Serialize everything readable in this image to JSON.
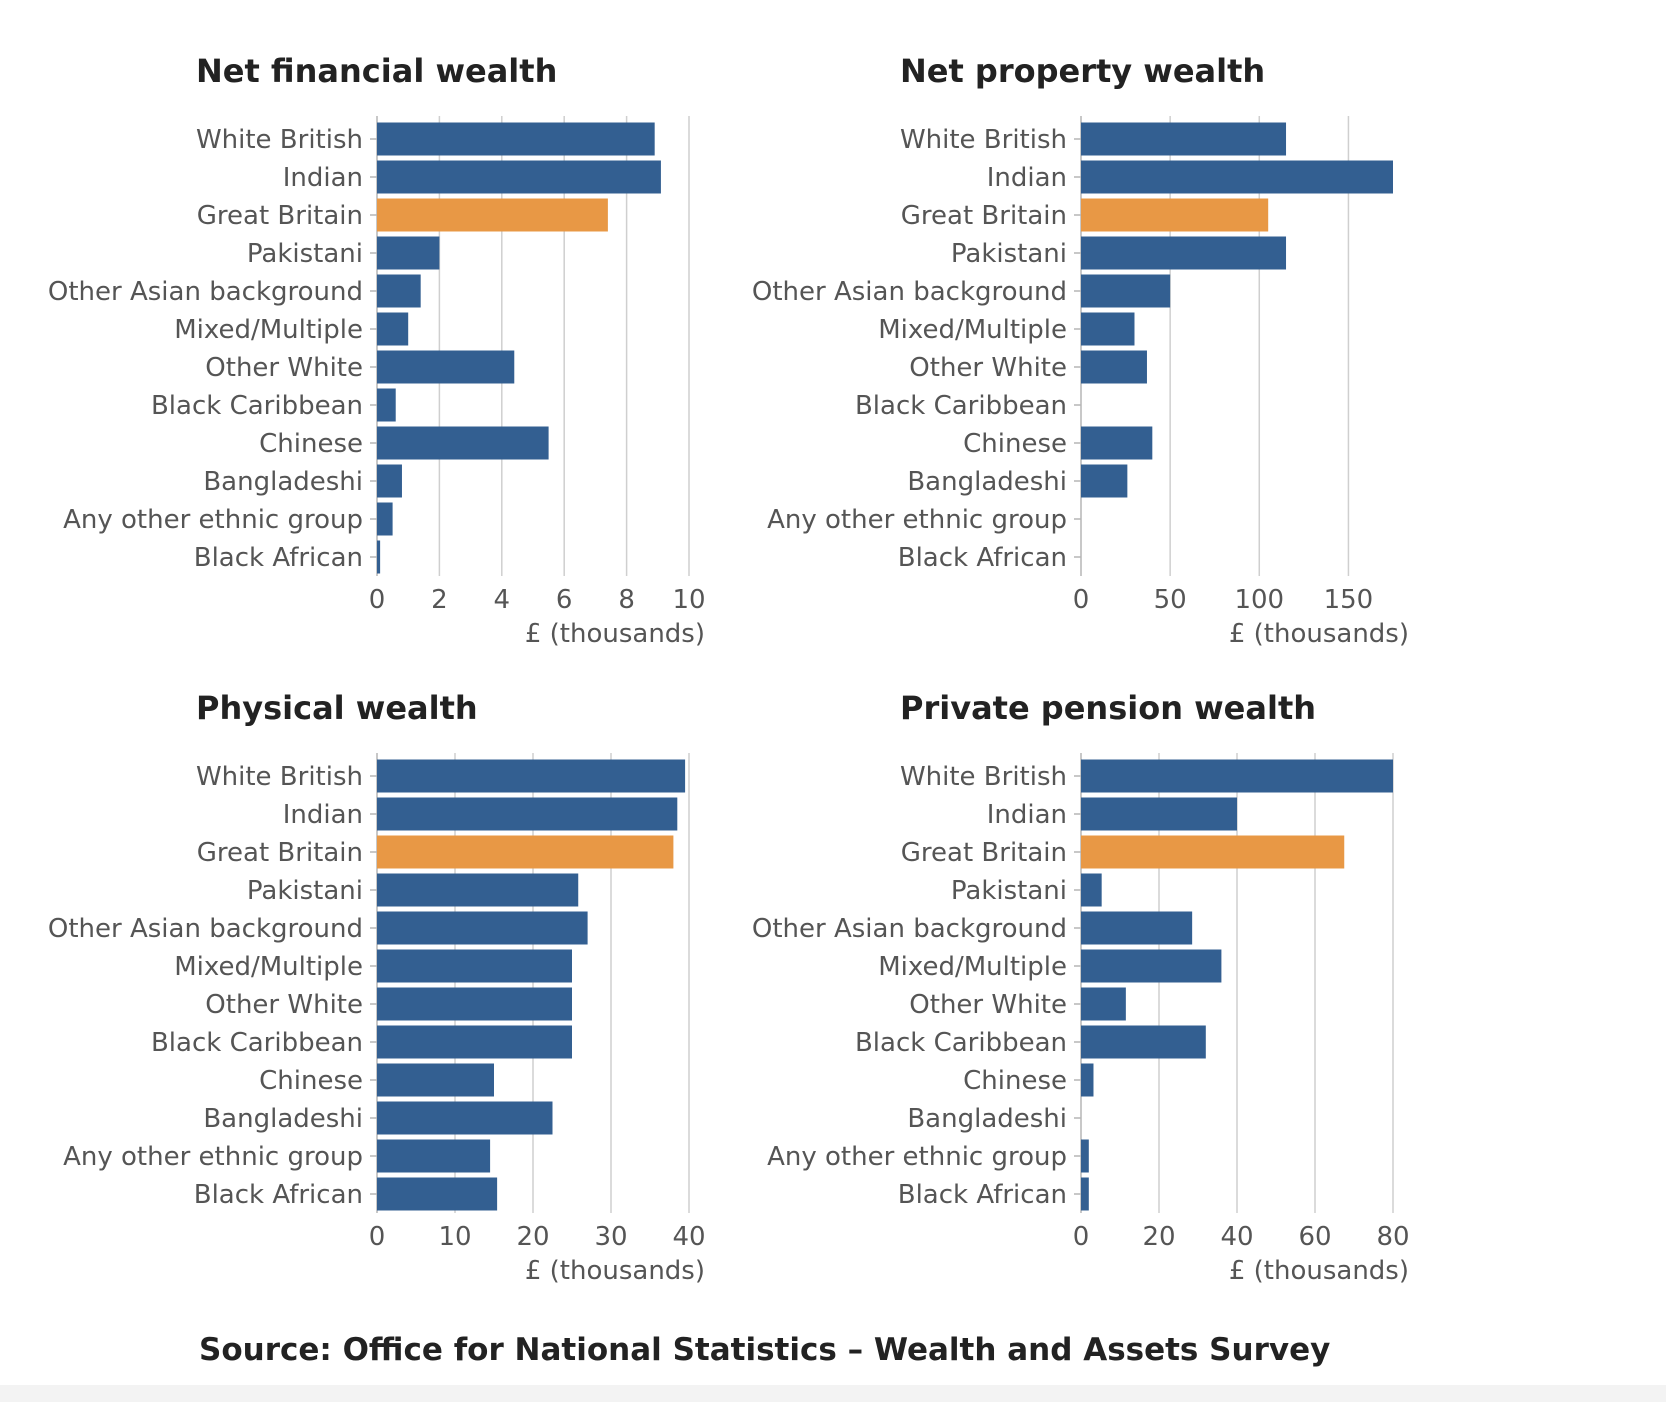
{
  "source": "Source: Office for National Statistics – Wealth and Assets Survey",
  "colors": {
    "bar": "#335f91",
    "highlight": "#e89845",
    "grid": "#cfcfcf",
    "axis_text": "#555555",
    "title": "#222222"
  },
  "chart_data": [
    {
      "type": "bar",
      "orientation": "horizontal",
      "title": "Net financial wealth",
      "xlabel": "£ (thousands)",
      "ylabel": "",
      "xlim": [
        0,
        10
      ],
      "ticks": [
        "0",
        "2",
        "4",
        "6",
        "8",
        "10"
      ],
      "tick_values": [
        0,
        2,
        4,
        6,
        8,
        10
      ],
      "grid": true,
      "highlight_category": "Great Britain",
      "categories": [
        "White British",
        "Indian",
        "Great Britain",
        "Pakistani",
        "Other Asian background",
        "Mixed/Multiple",
        "Other White",
        "Black Caribbean",
        "Chinese",
        "Bangladeshi",
        "Any other ethnic group",
        "Black African"
      ],
      "values": [
        8.9,
        9.1,
        7.4,
        2.0,
        1.4,
        1.0,
        4.4,
        0.6,
        5.5,
        0.8,
        0.5,
        0.1
      ]
    },
    {
      "type": "bar",
      "orientation": "horizontal",
      "title": "Net property wealth",
      "xlabel": "£ (thousands)",
      "ylabel": "",
      "xlim": [
        0,
        175
      ],
      "ticks": [
        "0",
        "50",
        "100",
        "150"
      ],
      "tick_values": [
        0,
        50,
        100,
        150
      ],
      "grid": true,
      "highlight_category": "Great Britain",
      "categories": [
        "White British",
        "Indian",
        "Great Britain",
        "Pakistani",
        "Other Asian background",
        "Mixed/Multiple",
        "Other White",
        "Black Caribbean",
        "Chinese",
        "Bangladeshi",
        "Any other ethnic group",
        "Black African"
      ],
      "values": [
        115,
        175,
        105,
        115,
        50,
        30,
        37,
        0,
        40,
        26,
        0,
        0
      ]
    },
    {
      "type": "bar",
      "orientation": "horizontal",
      "title": "Physical wealth",
      "xlabel": "£ (thousands)",
      "ylabel": "",
      "xlim": [
        0,
        40
      ],
      "ticks": [
        "0",
        "10",
        "20",
        "30",
        "40"
      ],
      "tick_values": [
        0,
        10,
        20,
        30,
        40
      ],
      "grid": true,
      "highlight_category": "Great Britain",
      "categories": [
        "White British",
        "Indian",
        "Great Britain",
        "Pakistani",
        "Other Asian background",
        "Mixed/Multiple",
        "Other White",
        "Black Caribbean",
        "Chinese",
        "Bangladeshi",
        "Any other ethnic group",
        "Black African"
      ],
      "values": [
        39.5,
        38.5,
        38,
        25.8,
        27,
        25,
        25,
        25,
        15,
        22.5,
        14.5,
        15.4
      ]
    },
    {
      "type": "bar",
      "orientation": "horizontal",
      "title": "Private pension wealth",
      "xlabel": "£ (thousands)",
      "ylabel": "",
      "xlim": [
        0,
        80
      ],
      "ticks": [
        "0",
        "20",
        "40",
        "60",
        "80"
      ],
      "tick_values": [
        0,
        20,
        40,
        60,
        80
      ],
      "grid": true,
      "highlight_category": "Great Britain",
      "categories": [
        "White British",
        "Indian",
        "Great Britain",
        "Pakistani",
        "Other Asian background",
        "Mixed/Multiple",
        "Other White",
        "Black Caribbean",
        "Chinese",
        "Bangladeshi",
        "Any other ethnic group",
        "Black African"
      ],
      "values": [
        80,
        40,
        67.5,
        5.3,
        28.5,
        36,
        11.5,
        32,
        3.2,
        0,
        2,
        2
      ]
    }
  ]
}
